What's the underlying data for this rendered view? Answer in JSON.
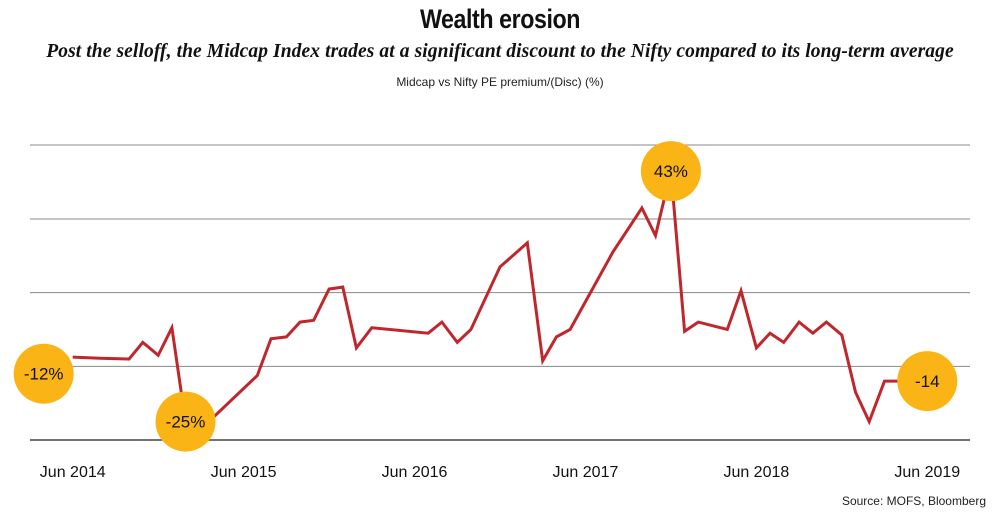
{
  "chart_data": {
    "type": "line",
    "title": "Wealth erosion",
    "subtitle": "Post the selloff, the Midcap Index trades at a significant discount to the Nifty compared to its long-term average",
    "ylabel": "Midcap vs Nifty PE premium/(Disc) (%)",
    "source": "Source: MOFS, Bloomberg",
    "xlabel": "",
    "ylim": [
      -30,
      50
    ],
    "gridlines_y": [
      -30,
      -10,
      10,
      30
    ],
    "grid": "horizontal",
    "x_tick_labels": [
      "Jun 2014",
      "Jun 2015",
      "Jun 2016",
      "Jun 2017",
      "Jun 2018",
      "Jun 2019"
    ],
    "x_tick_positions": [
      2014.42,
      2015.42,
      2016.42,
      2017.42,
      2018.42,
      2019.42
    ],
    "xlim": [
      2014.17,
      2019.67
    ],
    "line_color": "#c0272d",
    "bubble_color": "#fbb416",
    "series": [
      {
        "x": [
          2014.42,
          2014.58,
          2014.75,
          2014.83,
          2014.92,
          2015.0,
          2015.08,
          2015.25,
          2015.5,
          2015.58,
          2015.67,
          2015.75,
          2015.83,
          2015.92,
          2016.0,
          2016.08,
          2016.17,
          2016.5,
          2016.58,
          2016.67,
          2016.75,
          2016.92,
          2017.08,
          2017.17,
          2017.25,
          2017.33,
          2017.58,
          2017.75,
          2017.83,
          2017.92,
          2018.0,
          2018.08,
          2018.25,
          2018.33,
          2018.42,
          2018.5,
          2018.58,
          2018.67,
          2018.75,
          2018.83,
          2018.92,
          2019.0,
          2019.08,
          2019.17,
          2019.25,
          2019.33,
          2019.42
        ],
        "y": [
          -7.5,
          -7.8,
          -8.0,
          -3.5,
          -7.0,
          0.5,
          -25.0,
          -23.5,
          -12.5,
          -2.5,
          -2.0,
          2.0,
          2.5,
          11.0,
          11.5,
          -5.0,
          0.5,
          -1.0,
          2.0,
          -3.5,
          0.0,
          17.0,
          23.5,
          -8.5,
          -2.0,
          0.0,
          21.0,
          33.0,
          25.5,
          43.0,
          -0.5,
          2.0,
          0.0,
          10.5,
          -5.0,
          -1.0,
          -3.5,
          2.0,
          -1.0,
          2.0,
          -1.5,
          -17.0,
          -25.0,
          -14.0,
          -14.0,
          -14.0,
          -14.0
        ]
      }
    ],
    "annotations": [
      {
        "label": "-12%",
        "x": 2014.25,
        "y": -12
      },
      {
        "label": "-25%",
        "x": 2015.08,
        "y": -25
      },
      {
        "label": "43%",
        "x": 2017.92,
        "y": 43
      },
      {
        "label": "-14",
        "x": 2019.42,
        "y": -14
      }
    ]
  }
}
